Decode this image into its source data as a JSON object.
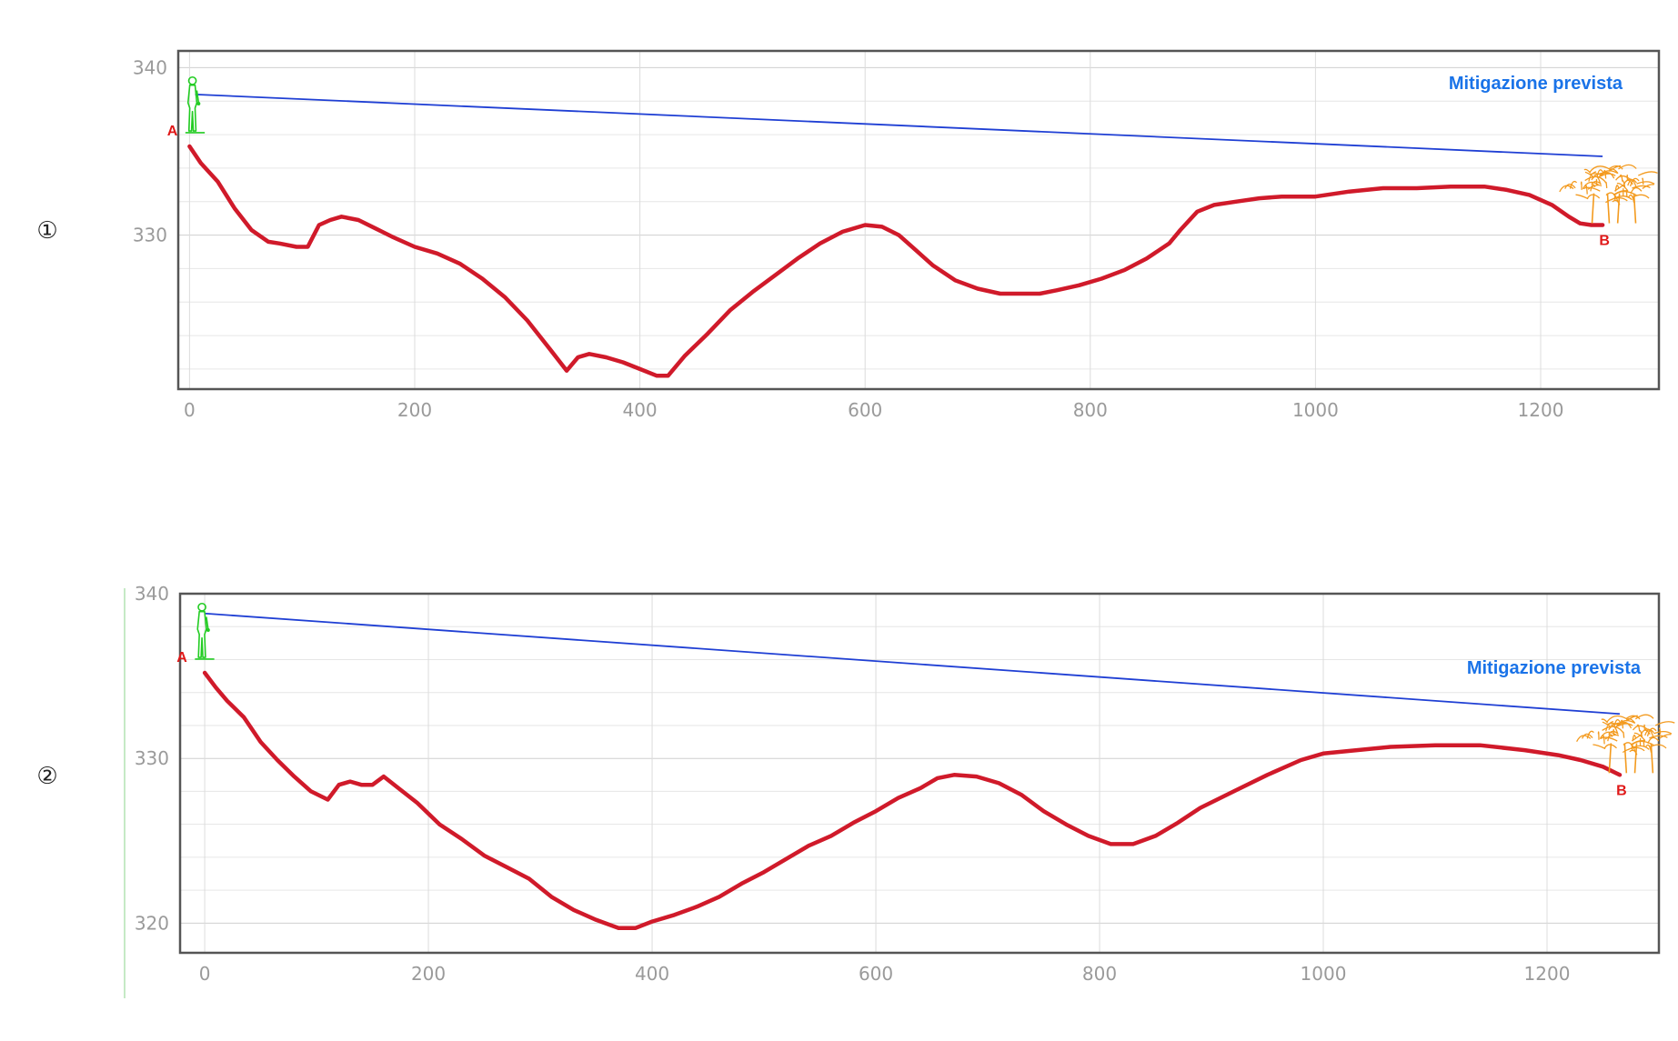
{
  "colors": {
    "profile": "#d01a2a",
    "sightline": "#1f3fd4",
    "annotation": "#1a73e8",
    "point_label": "#e01818",
    "viewer": "#22cc22",
    "tree": "#f39a1e",
    "frame": "#555555",
    "grid": "#dddddd",
    "tick": "#9a9a9a"
  },
  "icons": {
    "viewer": "person-icon",
    "target": "tree-icon"
  },
  "chart_data": [
    {
      "type": "line",
      "marker": "①",
      "annotation": "Mitigazione prevista",
      "point_a": "A",
      "point_b": "B",
      "xlim": [
        -10,
        1305
      ],
      "ylim": [
        320.8,
        341
      ],
      "xticks": [
        0,
        200,
        400,
        600,
        800,
        1000,
        1200
      ],
      "yticks": [
        330,
        340
      ],
      "grid": true,
      "sightline": {
        "x": [
          5,
          1255
        ],
        "y": [
          338.4,
          334.7
        ]
      },
      "series": [
        {
          "x": [
            0,
            10,
            25,
            40,
            55,
            70,
            80,
            95,
            105,
            115,
            125,
            135,
            150,
            165,
            180,
            200,
            220,
            240,
            260,
            280,
            300,
            320,
            335,
            345,
            355,
            370,
            385,
            400,
            415,
            425,
            440,
            460,
            480,
            500,
            520,
            540,
            560,
            580,
            600,
            615,
            630,
            645,
            660,
            680,
            700,
            720,
            740,
            755,
            770,
            790,
            810,
            830,
            850,
            870,
            880,
            895,
            910,
            930,
            950,
            970,
            1000,
            1030,
            1060,
            1090,
            1120,
            1150,
            1170,
            1190,
            1210,
            1225,
            1235,
            1245,
            1255
          ],
          "y": [
            335.3,
            334.3,
            333.2,
            331.6,
            330.3,
            329.6,
            329.5,
            329.3,
            329.3,
            330.6,
            330.9,
            331.1,
            330.9,
            330.4,
            329.9,
            329.3,
            328.9,
            328.3,
            327.4,
            326.3,
            324.9,
            323.2,
            321.9,
            322.7,
            322.9,
            322.7,
            322.4,
            322.0,
            321.6,
            321.6,
            322.8,
            324.1,
            325.5,
            326.6,
            327.6,
            328.6,
            329.5,
            330.2,
            330.6,
            330.5,
            330.0,
            329.1,
            328.2,
            327.3,
            326.8,
            326.5,
            326.5,
            326.5,
            326.7,
            327.0,
            327.4,
            327.9,
            328.6,
            329.5,
            330.3,
            331.4,
            331.8,
            332.0,
            332.2,
            332.3,
            332.3,
            332.6,
            332.8,
            332.8,
            332.9,
            332.9,
            332.7,
            332.4,
            331.8,
            331.1,
            330.7,
            330.6,
            330.6
          ]
        }
      ]
    },
    {
      "type": "line",
      "marker": "②",
      "annotation": "Mitigazione prevista",
      "point_a": "A",
      "point_b": "B",
      "xlim": [
        -22,
        1300
      ],
      "ylim": [
        318.2,
        340
      ],
      "xticks": [
        0,
        200,
        400,
        600,
        800,
        1000,
        1200
      ],
      "yticks": [
        320,
        330,
        340
      ],
      "grid": true,
      "sightline": {
        "x": [
          0,
          1265
        ],
        "y": [
          338.8,
          332.7
        ]
      },
      "series": [
        {
          "x": [
            0,
            10,
            20,
            35,
            50,
            65,
            80,
            95,
            110,
            120,
            130,
            140,
            150,
            160,
            175,
            190,
            210,
            230,
            250,
            270,
            290,
            310,
            330,
            350,
            370,
            385,
            400,
            420,
            440,
            460,
            480,
            500,
            520,
            540,
            560,
            580,
            600,
            620,
            640,
            655,
            670,
            690,
            710,
            730,
            750,
            770,
            790,
            810,
            830,
            850,
            870,
            890,
            920,
            950,
            980,
            1000,
            1030,
            1060,
            1100,
            1140,
            1180,
            1210,
            1230,
            1250,
            1265
          ],
          "y": [
            335.2,
            334.3,
            333.5,
            332.5,
            331.0,
            329.9,
            328.9,
            328.0,
            327.5,
            328.4,
            328.6,
            328.4,
            328.4,
            328.9,
            328.1,
            327.3,
            326.0,
            325.1,
            324.1,
            323.4,
            322.7,
            321.6,
            320.8,
            320.2,
            319.7,
            319.7,
            320.1,
            320.5,
            321.0,
            321.6,
            322.4,
            323.1,
            323.9,
            324.7,
            325.3,
            326.1,
            326.8,
            327.6,
            328.2,
            328.8,
            329.0,
            328.9,
            328.5,
            327.8,
            326.8,
            326.0,
            325.3,
            324.8,
            324.8,
            325.3,
            326.1,
            327.0,
            328.0,
            329.0,
            329.9,
            330.3,
            330.5,
            330.7,
            330.8,
            330.8,
            330.5,
            330.2,
            329.9,
            329.5,
            329.0
          ]
        }
      ]
    }
  ]
}
